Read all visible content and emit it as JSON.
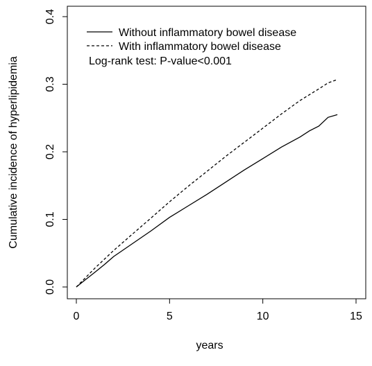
{
  "chart_data": {
    "type": "line",
    "title": "",
    "xlabel": "years",
    "ylabel": "Cumulative incidence of hyperlipidemia",
    "xlim": [
      0,
      15
    ],
    "ylim": [
      0,
      0.4
    ],
    "x_ticks": [
      0,
      5,
      10,
      15
    ],
    "x_tick_labels": [
      "0",
      "5",
      "10",
      "15"
    ],
    "y_ticks": [
      0.0,
      0.1,
      0.2,
      0.3,
      0.4
    ],
    "y_tick_labels": [
      "0.0",
      "0.1",
      "0.2",
      "0.3",
      "0.4"
    ],
    "grid": false,
    "legend": {
      "position": "top-left",
      "entries": [
        "Without inflammatory bowel disease",
        "With inflammatory bowel disease"
      ]
    },
    "annotation": "Log-rank test: P-value<0.001",
    "series": [
      {
        "name": "Without inflammatory bowel disease",
        "line_style": "solid",
        "color": "#000000",
        "x": [
          0,
          0.5,
          1,
          1.5,
          2,
          3,
          4,
          5,
          6,
          7,
          8,
          9,
          10,
          11,
          12,
          12.5,
          13,
          13.5,
          14
        ],
        "y": [
          0,
          0.011,
          0.022,
          0.033,
          0.045,
          0.064,
          0.083,
          0.103,
          0.12,
          0.137,
          0.155,
          0.173,
          0.19,
          0.207,
          0.222,
          0.231,
          0.238,
          0.251,
          0.255
        ]
      },
      {
        "name": "With inflammatory bowel disease",
        "line_style": "dashed",
        "color": "#000000",
        "x": [
          0,
          0.5,
          1,
          1.5,
          2,
          3,
          4,
          5,
          6,
          7,
          8,
          9,
          10,
          11,
          12,
          13,
          13.5,
          14
        ],
        "y": [
          0,
          0.014,
          0.028,
          0.041,
          0.054,
          0.078,
          0.102,
          0.126,
          0.149,
          0.171,
          0.193,
          0.214,
          0.235,
          0.256,
          0.276,
          0.293,
          0.302,
          0.307
        ]
      }
    ]
  }
}
